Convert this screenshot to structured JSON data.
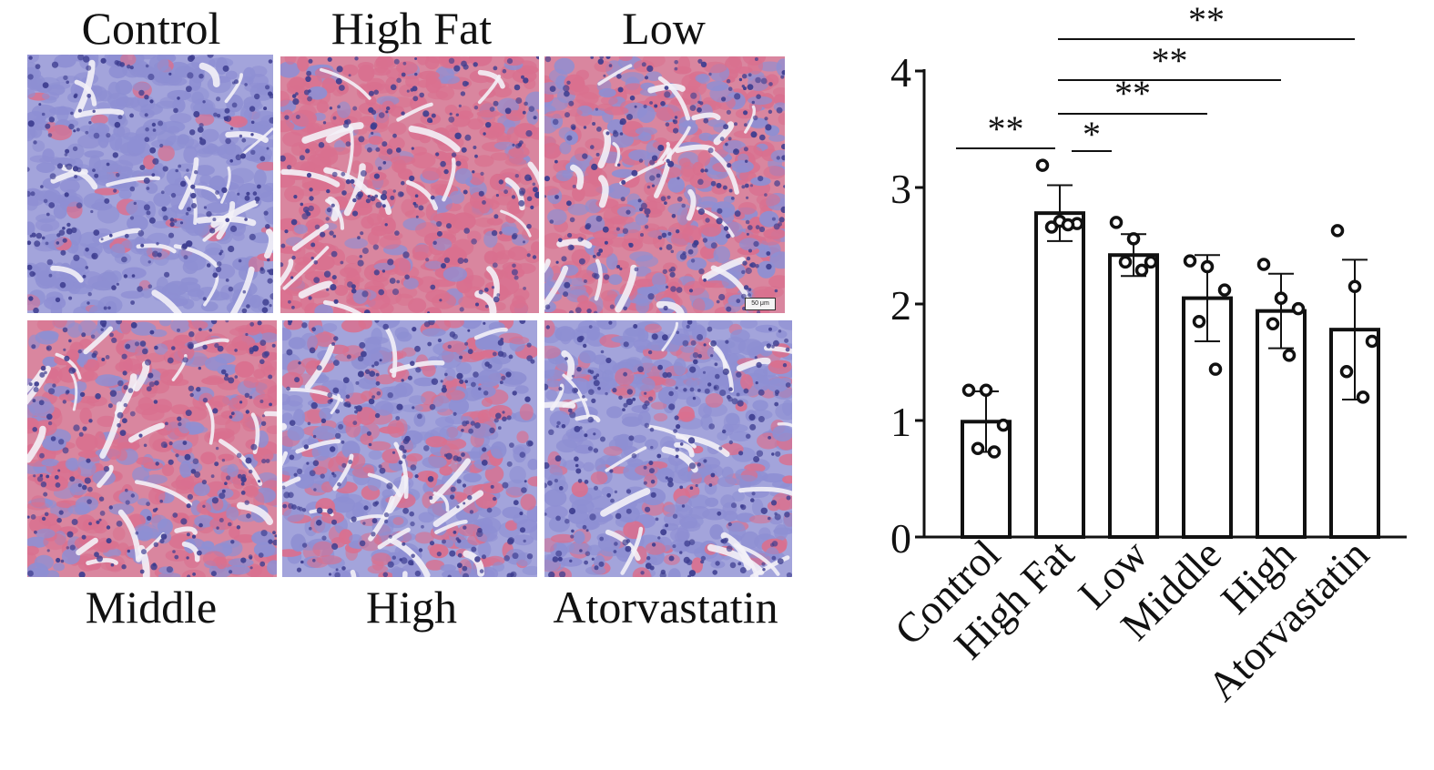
{
  "histology": {
    "panels": [
      {
        "label": "Control",
        "stain": "blue"
      },
      {
        "label": "High Fat",
        "stain": "red"
      },
      {
        "label": "Low",
        "stain": "mixed-red"
      },
      {
        "label": "Middle",
        "stain": "mixed-red"
      },
      {
        "label": "High",
        "stain": "mixed"
      },
      {
        "label": "Atorvastatin",
        "stain": "mixed-blue"
      }
    ],
    "scale_bar_label": "50 μm",
    "colors": {
      "blue": "#8e8fd3",
      "red": "#d9708f",
      "nucleus": "#3d3d8f",
      "lumen": "#f3f1f7"
    }
  },
  "chart_data": {
    "type": "bar",
    "categories": [
      "Control",
      "High Fat",
      "Low",
      "Middle",
      "High",
      "Atorvastatin"
    ],
    "values": [
      0.99,
      2.78,
      2.42,
      2.05,
      1.94,
      1.78
    ],
    "errors": [
      0.26,
      0.24,
      0.18,
      0.37,
      0.32,
      0.6
    ],
    "points": [
      [
        1.26,
        1.26,
        0.96,
        0.76,
        0.73
      ],
      [
        3.19,
        2.71,
        2.69,
        2.66,
        2.68
      ],
      [
        2.7,
        2.56,
        2.36,
        2.36,
        2.29
      ],
      [
        2.37,
        2.32,
        2.12,
        1.85,
        1.44
      ],
      [
        2.34,
        2.05,
        1.96,
        1.83,
        1.56
      ],
      [
        2.63,
        2.15,
        1.68,
        1.42,
        1.2
      ]
    ],
    "ylim": [
      0,
      4
    ],
    "yticks": [
      "0",
      "1",
      "2",
      "3",
      "4"
    ],
    "xlabel": "",
    "ylabel": "",
    "significance": [
      {
        "from": 0,
        "to": 1,
        "label": "**"
      },
      {
        "from": 1,
        "to": 2,
        "label": "*"
      },
      {
        "from": 1,
        "to": 3,
        "label": "**"
      },
      {
        "from": 1,
        "to": 4,
        "label": "**"
      },
      {
        "from": 1,
        "to": 5,
        "label": "**"
      }
    ],
    "bar_color": "#ffffff",
    "line_color": "#111111"
  }
}
